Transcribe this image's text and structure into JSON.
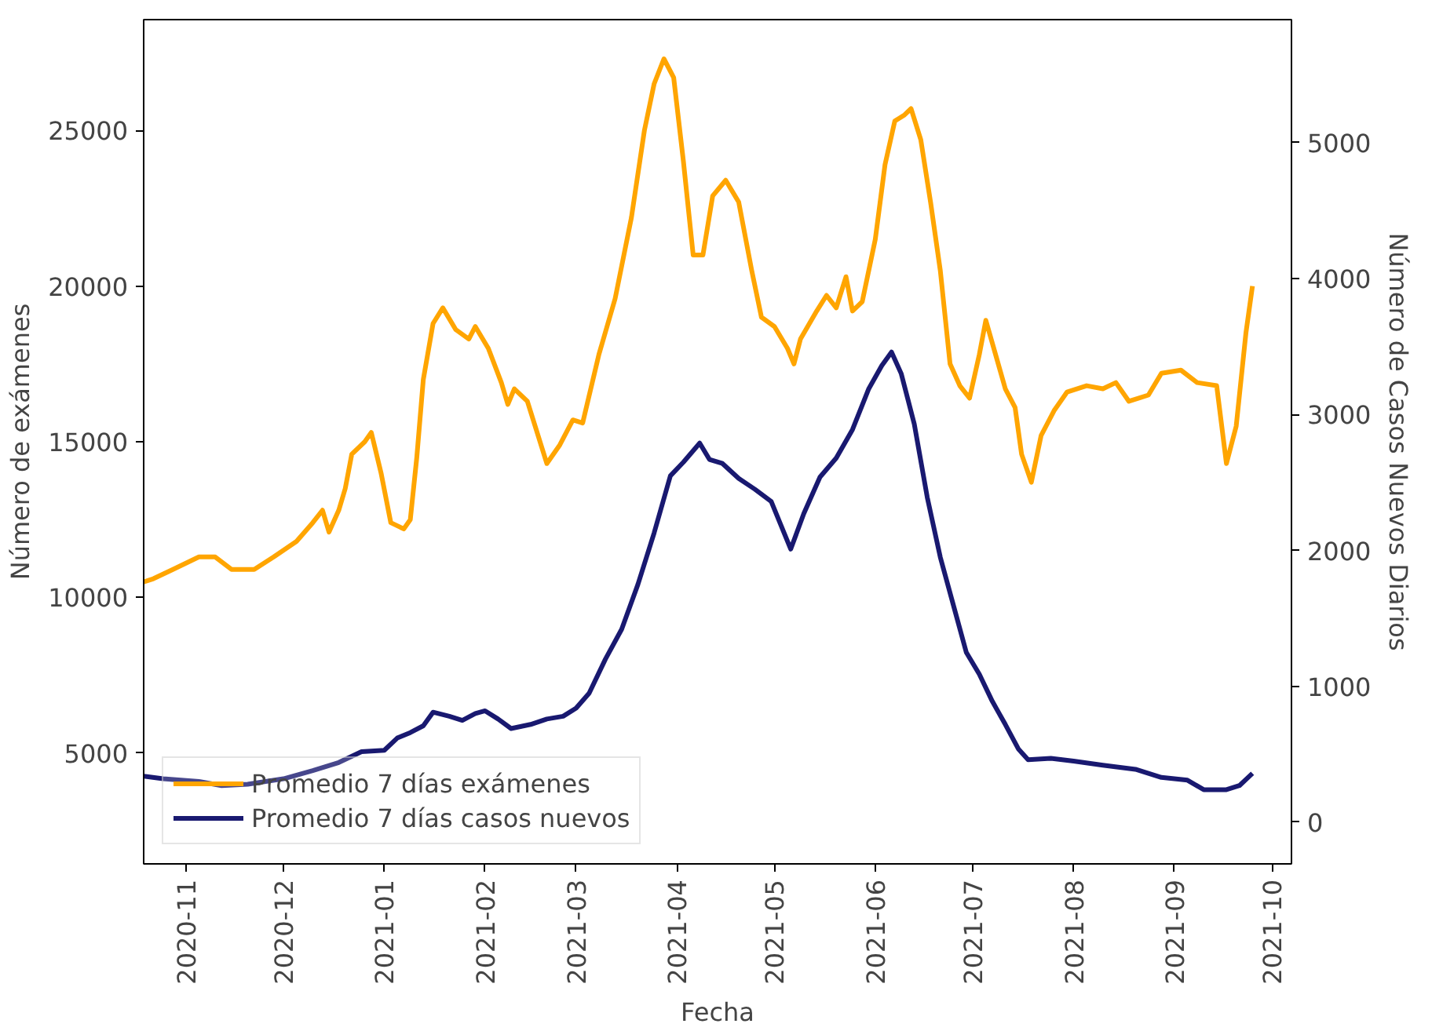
{
  "chart_data": {
    "type": "line",
    "xlabel": "Fecha",
    "ylabel": "Número de exámenes",
    "y2label": "Número de Casos Nuevos Diarios",
    "x": [
      "2020-10-19",
      "2020-10-22",
      "2020-10-28",
      "2020-11-05",
      "2020-11-10",
      "2020-11-15",
      "2020-11-22",
      "2020-11-28",
      "2020-12-05",
      "2020-12-10",
      "2020-12-13",
      "2020-12-15",
      "2020-12-18",
      "2020-12-20",
      "2020-12-22",
      "2020-12-26",
      "2020-12-28",
      "2020-12-31",
      "2021-01-03",
      "2021-01-07",
      "2021-01-09",
      "2021-01-11",
      "2021-01-13",
      "2021-01-16",
      "2021-01-19",
      "2021-01-23",
      "2021-01-27",
      "2021-01-29",
      "2021-02-02",
      "2021-02-06",
      "2021-02-08",
      "2021-02-10",
      "2021-02-14",
      "2021-02-20",
      "2021-02-24",
      "2021-02-28",
      "2021-03-03",
      "2021-03-08",
      "2021-03-13",
      "2021-03-18",
      "2021-03-22",
      "2021-03-25",
      "2021-03-28",
      "2021-03-31",
      "2021-04-03",
      "2021-04-06",
      "2021-04-09",
      "2021-04-12",
      "2021-04-16",
      "2021-04-20",
      "2021-04-24",
      "2021-04-27",
      "2021-05-01",
      "2021-05-05",
      "2021-05-07",
      "2021-05-09",
      "2021-05-14",
      "2021-05-17",
      "2021-05-20",
      "2021-05-23",
      "2021-05-25",
      "2021-05-28",
      "2021-06-01",
      "2021-06-04",
      "2021-06-07",
      "2021-06-10",
      "2021-06-12",
      "2021-06-15",
      "2021-06-18",
      "2021-06-21",
      "2021-06-24",
      "2021-06-27",
      "2021-06-30",
      "2021-07-03",
      "2021-07-05",
      "2021-07-08",
      "2021-07-11",
      "2021-07-14",
      "2021-07-16",
      "2021-07-19",
      "2021-07-22",
      "2021-07-26",
      "2021-07-30",
      "2021-08-05",
      "2021-08-10",
      "2021-08-14",
      "2021-08-18",
      "2021-08-24",
      "2021-08-28",
      "2021-09-03",
      "2021-09-08",
      "2021-09-14",
      "2021-09-17",
      "2021-09-20",
      "2021-09-23",
      "2021-09-25"
    ],
    "xlim": [
      "2020-10-19",
      "2021-10-07"
    ],
    "xticks": [
      "2020-11",
      "2020-12",
      "2021-01",
      "2021-02",
      "2021-03",
      "2021-04",
      "2021-05",
      "2021-06",
      "2021-07",
      "2021-08",
      "2021-09",
      "2021-10"
    ],
    "ylim": [
      1440,
      28560
    ],
    "yticks": [
      5000,
      10000,
      15000,
      20000,
      25000
    ],
    "y2lim": [
      -306,
      5906
    ],
    "y2ticks": [
      0,
      1000,
      2000,
      3000,
      4000,
      5000
    ],
    "grid": false,
    "legend": "bottom left",
    "series": [
      {
        "name": "Promedio 7 días exámenes",
        "color": "#ffa500",
        "values": [
          10500,
          10600,
          10900,
          11300,
          11300,
          10900,
          10900,
          11300,
          11800,
          12400,
          12800,
          12100,
          12800,
          13500,
          14600,
          15000,
          15300,
          14000,
          12400,
          12200,
          12500,
          14500,
          17000,
          18800,
          19300,
          18600,
          18300,
          18700,
          18000,
          16900,
          16200,
          16700,
          16300,
          14300,
          14900,
          15700,
          15600,
          17800,
          19600,
          22200,
          25000,
          26500,
          27300,
          26700,
          24000,
          21000,
          21000,
          22900,
          23400,
          22700,
          20500,
          19000,
          18700,
          18000,
          17500,
          18300,
          19200,
          19700,
          19300,
          20300,
          19200,
          19500,
          21500,
          23900,
          25300,
          25500,
          25700,
          24700,
          22700,
          20500,
          17500,
          16800,
          16400,
          17800,
          18900,
          17800,
          16700,
          16100,
          14600,
          13700,
          15200,
          16000,
          16600,
          16800,
          16700,
          16900,
          16300,
          16500,
          17200,
          17300,
          16900,
          16800,
          14300,
          15500,
          18500,
          20000
        ]
      },
      {
        "name": "Promedio 7 días casos nuevos",
        "color": "#191970",
        "axis": "y2",
        "x": [
          "2020-10-19",
          "2020-10-25",
          "2020-11-05",
          "2020-11-12",
          "2020-11-20",
          "2020-12-01",
          "2020-12-10",
          "2020-12-18",
          "2020-12-25",
          "2021-01-01",
          "2021-01-05",
          "2021-01-09",
          "2021-01-13",
          "2021-01-16",
          "2021-01-21",
          "2021-01-25",
          "2021-01-29",
          "2021-02-01",
          "2021-02-05",
          "2021-02-09",
          "2021-02-15",
          "2021-02-20",
          "2021-02-25",
          "2021-03-01",
          "2021-03-05",
          "2021-03-10",
          "2021-03-15",
          "2021-03-20",
          "2021-03-25",
          "2021-03-30",
          "2021-04-03",
          "2021-04-08",
          "2021-04-11",
          "2021-04-15",
          "2021-04-20",
          "2021-04-25",
          "2021-04-30",
          "2021-05-06",
          "2021-05-10",
          "2021-05-15",
          "2021-05-20",
          "2021-05-25",
          "2021-05-30",
          "2021-06-03",
          "2021-06-06",
          "2021-06-09",
          "2021-06-13",
          "2021-06-17",
          "2021-06-21",
          "2021-06-25",
          "2021-06-29",
          "2021-07-03",
          "2021-07-07",
          "2021-07-11",
          "2021-07-15",
          "2021-07-18",
          "2021-07-25",
          "2021-08-01",
          "2021-08-10",
          "2021-08-20",
          "2021-08-28",
          "2021-09-05",
          "2021-09-10",
          "2021-09-17",
          "2021-09-21",
          "2021-09-25"
        ],
        "values": [
          340,
          320,
          300,
          270,
          280,
          320,
          380,
          440,
          520,
          530,
          620,
          660,
          710,
          810,
          780,
          750,
          800,
          820,
          760,
          690,
          720,
          760,
          780,
          840,
          950,
          1200,
          1420,
          1750,
          2130,
          2550,
          2650,
          2790,
          2670,
          2640,
          2530,
          2450,
          2360,
          2010,
          2270,
          2540,
          2680,
          2890,
          3190,
          3360,
          3460,
          3300,
          2930,
          2390,
          1950,
          1600,
          1250,
          1090,
          890,
          720,
          540,
          460,
          470,
          450,
          420,
          390,
          330,
          310,
          240,
          240,
          270,
          360
        ]
      }
    ]
  }
}
